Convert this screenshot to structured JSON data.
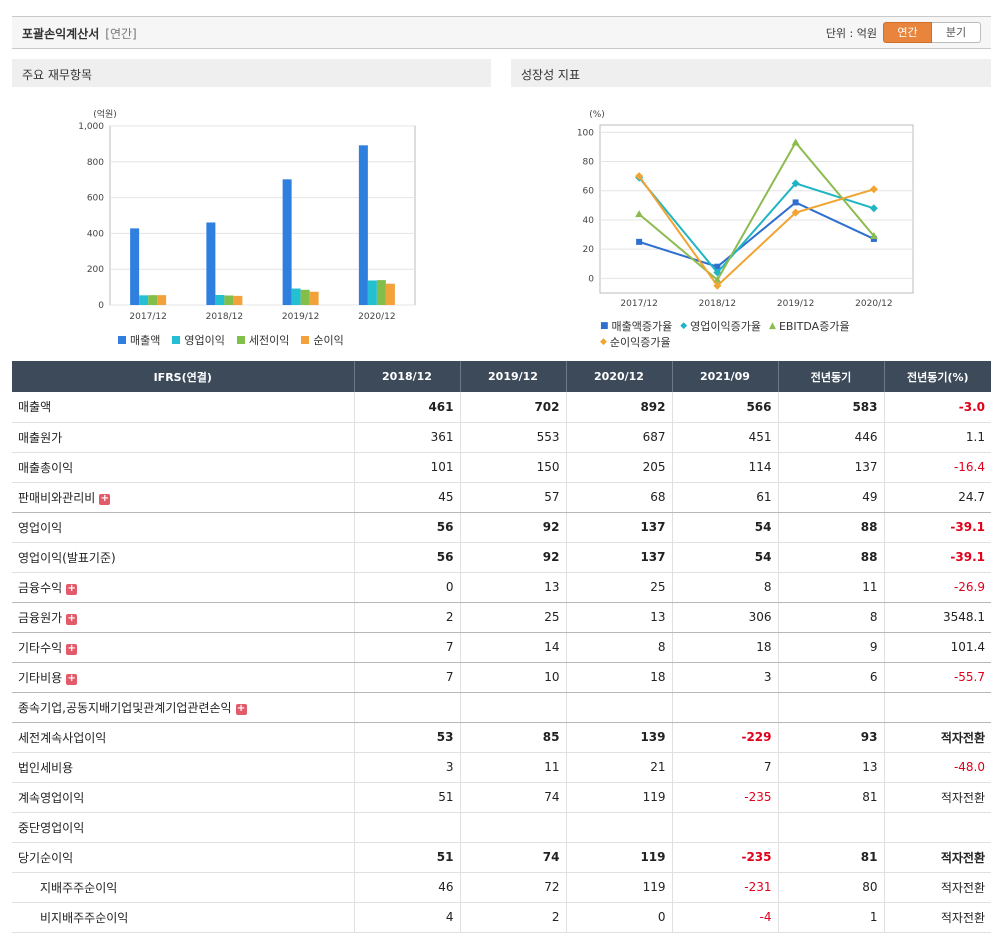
{
  "header": {
    "title": "포괄손익계산서",
    "subtitle": "[연간]",
    "unit_label": "단위 : 억원",
    "period_on": "연간",
    "period_off": "분기"
  },
  "panels": {
    "left_title": "주요 재무항목",
    "right_title": "성장성 지표"
  },
  "chart_data": [
    {
      "type": "bar",
      "ylabel": "(억원)",
      "ylim": [
        0,
        1000
      ],
      "yticks": [
        "1,000",
        "800",
        "600",
        "400",
        "200",
        "0"
      ],
      "categories": [
        "2017/12",
        "2018/12",
        "2019/12",
        "2020/12"
      ],
      "series": [
        {
          "name": "매출액",
          "color": "#2f7fdf",
          "values": [
            428,
            461,
            702,
            892
          ]
        },
        {
          "name": "영업이익",
          "color": "#24bfd3",
          "values": [
            54,
            56,
            92,
            137
          ]
        },
        {
          "name": "세전이익",
          "color": "#82bf4a",
          "values": [
            55,
            53,
            85,
            139
          ]
        },
        {
          "name": "순이익",
          "color": "#f2a13b",
          "values": [
            55,
            51,
            74,
            119
          ]
        }
      ],
      "grid": true,
      "legend": "bottom"
    },
    {
      "type": "line",
      "ylabel": "(%)",
      "ylim": [
        -10,
        105
      ],
      "yticks": [
        "100",
        "80",
        "60",
        "40",
        "20",
        "0"
      ],
      "categories": [
        "2017/12",
        "2018/12",
        "2019/12",
        "2020/12"
      ],
      "series": [
        {
          "name": "매출액증가율",
          "color": "#2f6fd0",
          "marker": "square",
          "values": [
            25,
            8,
            52,
            27
          ]
        },
        {
          "name": "영업이익증가율",
          "color": "#1fb5c4",
          "marker": "diamond",
          "values": [
            69,
            4,
            65,
            48
          ]
        },
        {
          "name": "EBITDA증가율",
          "color": "#8cbb4f",
          "marker": "triangle",
          "values": [
            44,
            -1,
            93,
            29
          ]
        },
        {
          "name": "순이익증가율",
          "color": "#f0a432",
          "marker": "diamond",
          "values": [
            70,
            -5,
            45,
            61
          ]
        }
      ],
      "grid": true,
      "legend": "bottom"
    }
  ],
  "table": {
    "headers": [
      "IFRS(연결)",
      "2018/12",
      "2019/12",
      "2020/12",
      "2021/09",
      "전년동기",
      "전년동기(%)"
    ],
    "rows": [
      {
        "label": "매출액",
        "values": [
          "461",
          "702",
          "892",
          "566",
          "583",
          "-3.0"
        ],
        "bold": true,
        "neg": [
          5
        ]
      },
      {
        "label": "매출원가",
        "values": [
          "361",
          "553",
          "687",
          "451",
          "446",
          "1.1"
        ],
        "neg": []
      },
      {
        "label": "매출총이익",
        "values": [
          "101",
          "150",
          "205",
          "114",
          "137",
          "-16.4"
        ],
        "neg": [
          5
        ]
      },
      {
        "label": "판매비와관리비",
        "plus": true,
        "values": [
          "45",
          "57",
          "68",
          "61",
          "49",
          "24.7"
        ],
        "neg": [],
        "sep": true
      },
      {
        "label": "영업이익",
        "values": [
          "56",
          "92",
          "137",
          "54",
          "88",
          "-39.1"
        ],
        "bold": true,
        "neg": [
          5
        ]
      },
      {
        "label": "영업이익(발표기준)",
        "values": [
          "56",
          "92",
          "137",
          "54",
          "88",
          "-39.1"
        ],
        "bold": true,
        "neg": [
          5
        ]
      },
      {
        "label": "금융수익",
        "plus": true,
        "values": [
          "0",
          "13",
          "25",
          "8",
          "11",
          "-26.9"
        ],
        "neg": [
          5
        ],
        "sep": true
      },
      {
        "label": "금융원가",
        "plus": true,
        "values": [
          "2",
          "25",
          "13",
          "306",
          "8",
          "3548.1"
        ],
        "neg": [],
        "sep": true
      },
      {
        "label": "기타수익",
        "plus": true,
        "values": [
          "7",
          "14",
          "8",
          "18",
          "9",
          "101.4"
        ],
        "neg": [],
        "sep": true
      },
      {
        "label": "기타비용",
        "plus": true,
        "values": [
          "7",
          "10",
          "18",
          "3",
          "6",
          "-55.7"
        ],
        "neg": [
          5
        ],
        "sep": true
      },
      {
        "label": "종속기업,공동지배기업및관계기업관련손익",
        "plus": true,
        "values": [
          "",
          "",
          "",
          "",
          "",
          ""
        ],
        "neg": [],
        "sep": true
      },
      {
        "label": "세전계속사업이익",
        "values": [
          "53",
          "85",
          "139",
          "-229",
          "93",
          "적자전환"
        ],
        "bold": true,
        "neg": [
          3
        ]
      },
      {
        "label": "법인세비용",
        "values": [
          "3",
          "11",
          "21",
          "7",
          "13",
          "-48.0"
        ],
        "neg": [
          5
        ]
      },
      {
        "label": "계속영업이익",
        "values": [
          "51",
          "74",
          "119",
          "-235",
          "81",
          "적자전환"
        ],
        "neg": [
          3
        ]
      },
      {
        "label": "중단영업이익",
        "values": [
          "",
          "",
          "",
          "",
          "",
          ""
        ],
        "neg": []
      },
      {
        "label": "당기순이익",
        "values": [
          "51",
          "74",
          "119",
          "-235",
          "81",
          "적자전환"
        ],
        "bold": true,
        "neg": [
          3
        ]
      },
      {
        "label": "지배주주순이익",
        "indent": true,
        "values": [
          "46",
          "72",
          "119",
          "-231",
          "80",
          "적자전환"
        ],
        "neg": [
          3
        ]
      },
      {
        "label": "비지배주주순이익",
        "indent": true,
        "values": [
          "4",
          "2",
          "0",
          "-4",
          "1",
          "적자전환"
        ],
        "neg": [
          3
        ]
      }
    ]
  }
}
